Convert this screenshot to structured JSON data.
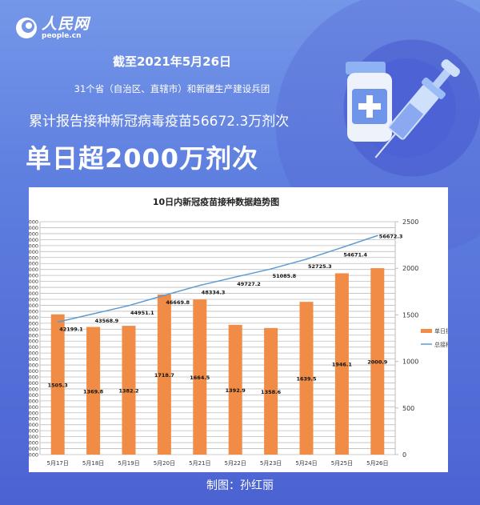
{
  "brand": {
    "name_cn": "人民网",
    "name_en": "people.cn"
  },
  "header": {
    "date_line": "截至2021年5月26日",
    "scope_line": "31个省（自治区、直辖市）和新疆生产建设兵团",
    "total_line": "累计报告接种新冠病毒疫苗56672.3万剂次",
    "headline": "单日超2000万剂次"
  },
  "footer": {
    "credit": "制图：孙红丽"
  },
  "chart_data": {
    "type": "bar+line",
    "title": "10日内新冠疫苗接种数据趋势图",
    "categories": [
      "5月17日",
      "5月18日",
      "5月19日",
      "5月20日",
      "5月21日",
      "5月22日",
      "5月23日",
      "5月24日",
      "5月25日",
      "5月26日"
    ],
    "series": [
      {
        "name": "单日接种量",
        "type": "bar",
        "axis": "right",
        "color": "#f08c46",
        "values": [
          1505.3,
          1369.8,
          1382.2,
          1718.7,
          1664.5,
          1392.9,
          1358.6,
          1639.5,
          1946.1,
          2000.9
        ]
      },
      {
        "name": "总接种量",
        "type": "line",
        "axis": "left",
        "color": "#5b9bd5",
        "values": [
          42199.1,
          43568.9,
          44951.1,
          46669.8,
          48334.3,
          49727.2,
          51085.8,
          52725.3,
          54671.4,
          56672.3
        ]
      }
    ],
    "left_axis": {
      "ylim": [
        20000,
        59000
      ],
      "step": 1000
    },
    "right_axis": {
      "ylim": [
        0,
        2500
      ],
      "step": 500
    },
    "grid": true,
    "legend": "right"
  }
}
